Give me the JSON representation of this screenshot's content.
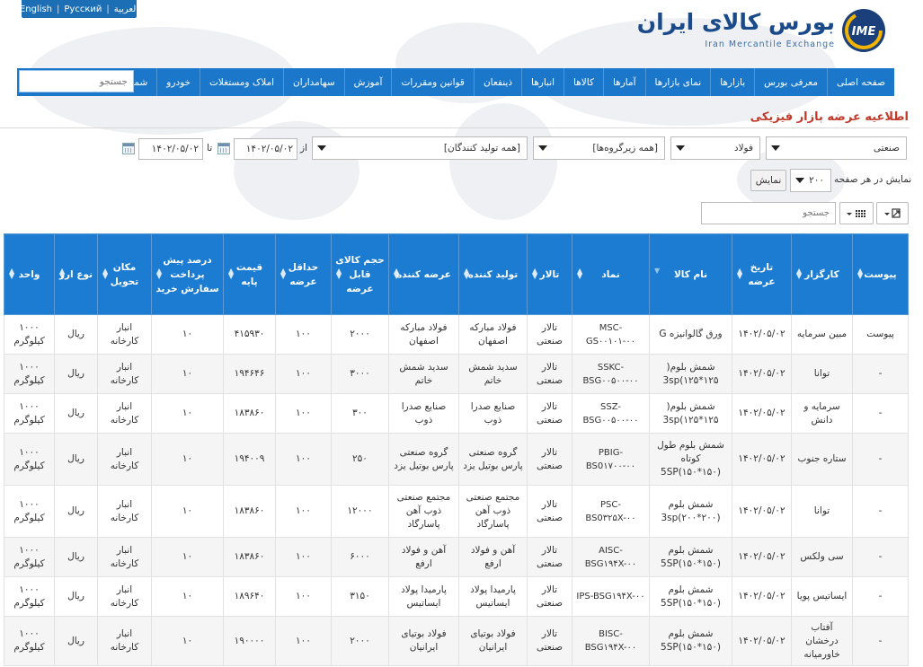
{
  "lang_bar": {
    "items": [
      "English",
      "Русский",
      "العربية"
    ]
  },
  "logo": {
    "title": "بورس کالای ایران",
    "subtitle": "Iran Mercantile Exchange",
    "emblem_text": "IME"
  },
  "nav": {
    "items": [
      "صفحه اصلی",
      "معرفی بورس",
      "بازارها",
      "نمای بازارها",
      "آمارها",
      "کالاها",
      "انبارها",
      "ذینفعان",
      "قوانین ومقررات",
      "آموزش",
      "سهامداران",
      "املاک ومستغلات",
      "خودرو",
      "شمش طلا"
    ],
    "search_placeholder": "جستجو"
  },
  "page_title": "اطلاعیه عرضه بازار فیزیکی",
  "filters": {
    "market": "صنعتی",
    "group": "فولاد",
    "subgroup": "[همه زیرگروه‌ها]",
    "producer": "[همه تولید کنندگان]",
    "from_label": "از",
    "from_date": "۱۴۰۲/۰۵/۰۲",
    "to_label": "تا",
    "to_date": "۱۴۰۲/۰۵/۰۲",
    "per_page_label": "نمایش در هر صفحه",
    "per_page": "۲۰۰",
    "show_button": "نمایش",
    "table_search_placeholder": "جستجو"
  },
  "table": {
    "headers": [
      "پیوست",
      "کارگزار",
      "تاریخ عرضه",
      "نام کالا",
      "نماد",
      "تالار",
      "تولید کننده",
      "عرضه کننده",
      "حجم کالای قابل عرضه",
      "حداقل عرضه",
      "قیمت پایه",
      "درصد پیش پرداخت سفارش خرید",
      "مکان تحویل",
      "نوع ارز",
      "واحد"
    ],
    "rows": [
      [
        "پیوست",
        "مبین سرمایه",
        "۱۴۰۲/۰۵/۰۲",
        "ورق گالوانیزه G",
        "MSC-GS۰۰۱۰۱-۰۰",
        "تالار صنعتی",
        "فولاد مبارکه اصفهان",
        "فولاد مبارکه اصفهان",
        "۲۰۰۰",
        "۱۰۰",
        "۴۱۵۹۳۰",
        "۱۰",
        "انبار کارخانه",
        "ریال",
        "۱۰۰۰ کیلوگرم"
      ],
      [
        "-",
        "توانا",
        "۱۴۰۲/۰۵/۰۲",
        "شمش بلوم( 3sp(۱۲۵*۱۲۵",
        "SSKC-BSG۰۰۵۰۰-۰۰",
        "تالار صنعتی",
        "سدید شمش خاتم",
        "سدید شمش خاتم",
        "۳۰۰۰",
        "۱۰۰",
        "۱۹۴۶۴۶",
        "۱۰",
        "انبار کارخانه",
        "ریال",
        "۱۰۰۰ کیلوگرم"
      ],
      [
        "-",
        "سرمایه و دانش",
        "۱۴۰۲/۰۵/۰۲",
        "شمش بلوم( 3sp(۱۲۵*۱۲۵",
        "SSZ-BSG۰۰۵۰۰-۰۰",
        "تالار صنعتی",
        "صنایع صدرا ذوب",
        "صنایع صدرا ذوب",
        "۳۰۰",
        "۱۰۰",
        "۱۸۳۸۶۰",
        "۱۰",
        "انبار کارخانه",
        "ریال",
        "۱۰۰۰ کیلوگرم"
      ],
      [
        "-",
        "ستاره جنوب",
        "۱۴۰۲/۰۵/۰۲",
        "شمش بلوم طول کوتاه 5SP(۱۵۰*۱۵۰)",
        "PBIG-BS0۱۷۰۰-۰۰",
        "تالار صنعتی",
        "گروه صنعتی پارس بوتیل یزد",
        "گروه صنعتی پارس بوتیل یزد",
        "۲۵۰",
        "۱۰۰",
        "۱۹۴۰۰۹",
        "۱۰",
        "انبار کارخانه",
        "ریال",
        "۱۰۰۰ کیلوگرم"
      ],
      [
        "-",
        "توانا",
        "۱۴۰۲/۰۵/۰۲",
        "شمش بلوم 3sp(۲۰۰*۲۰۰)",
        "PSC-BS0۳۲۵X-۰۰",
        "تالار صنعتی",
        "مجتمع صنعتی ذوب آهن پاسارگاد",
        "مجتمع صنعتی ذوب آهن پاسارگاد",
        "۱۲۰۰۰",
        "۱۰۰",
        "۱۸۳۸۶۰",
        "۱۰",
        "انبار کارخانه",
        "ریال",
        "۱۰۰۰ کیلوگرم"
      ],
      [
        "-",
        "سی ولکس",
        "۱۴۰۲/۰۵/۰۲",
        "شمش بلوم 5SP(۱۵۰*۱۵۰)",
        "AISC-BSG۱۹۴X-۰۰",
        "تالار صنعتی",
        "آهن و فولاد ارفع",
        "آهن و فولاد ارفع",
        "۶۰۰۰",
        "۱۰۰",
        "۱۸۳۸۶۰",
        "۱۰",
        "انبار کارخانه",
        "ریال",
        "۱۰۰۰ کیلوگرم"
      ],
      [
        "-",
        "ایساتیس پویا",
        "۱۴۰۲/۰۵/۰۲",
        "شمش بلوم 5SP(۱۵۰*۱۵۰)",
        "IPS-BSG۱۹۴X-۰۰",
        "تالار صنعتی",
        "پارمیدا پولاد ایساتیس",
        "پارمیدا پولاد ایساتیس",
        "۳۱۵۰",
        "۱۰۰",
        "۱۸۹۶۴۰",
        "۱۰",
        "انبار کارخانه",
        "ریال",
        "۱۰۰۰ کیلوگرم"
      ],
      [
        "-",
        "آفتاب درخشان خاورمیانه",
        "۱۴۰۲/۰۵/۰۲",
        "شمش بلوم 5SP(۱۵۰*۱۵۰)",
        "BISC-BSG۱۹۴X-۰۰",
        "تالار صنعتی",
        "فولاد بوتیای ایرانیان",
        "فولاد بوتیای ایرانیان",
        "۲۰۰۰",
        "۱۰۰",
        "۱۹۰۰۰۰",
        "۱۰",
        "انبار کارخانه",
        "ریال",
        "۱۰۰۰ کیلوگرم"
      ]
    ]
  },
  "colors": {
    "nav": "#1a77c9",
    "header": "#1b7cd1",
    "title": "#c0392b",
    "link": "#1a6fc0"
  }
}
